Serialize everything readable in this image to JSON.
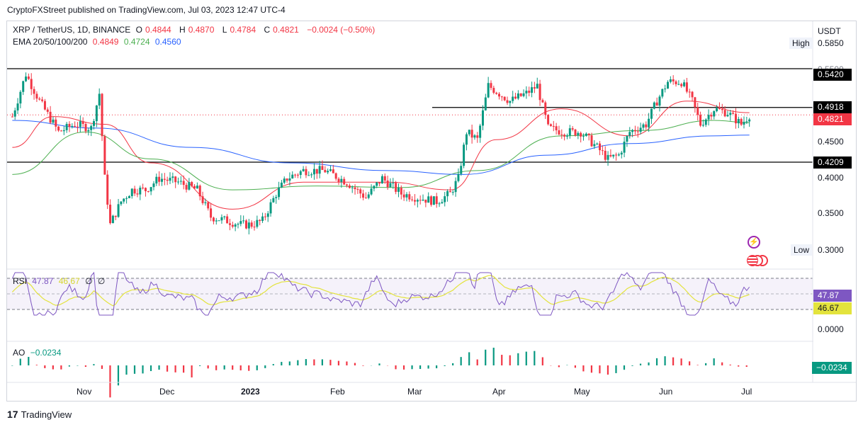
{
  "header": {
    "published": "CryptoFXStreet published on TradingView.com, Jul 03, 2023 12:47 UTC-4"
  },
  "legend": {
    "symbol": "XRP / TetherUS, 1D, BINANCE",
    "o_label": "O",
    "o": "0.4844",
    "h_label": "H",
    "h": "0.4870",
    "l_label": "L",
    "l": "0.4784",
    "c_label": "C",
    "c": "0.4821",
    "change": "−0.0024 (−0.50%)",
    "ema_label": "EMA 20/50/100/200",
    "ema20": "0.4849",
    "ema50": "0.4724",
    "ema100": "0.4560"
  },
  "rsi_legend": {
    "label": "RSI",
    "v1": "47.87",
    "v2": "46.67",
    "v3": "∅",
    "v4": "∅"
  },
  "ao_legend": {
    "label": "AO",
    "v": "−0.0234"
  },
  "price_axis": {
    "currency": "USDT",
    "high_label": "High",
    "high_value": "0.5850",
    "low_label": "Low",
    "low_value": "0.3000",
    "ticks": [
      "0.5500",
      "0.4500",
      "0.4000",
      "0.3500"
    ],
    "markers": [
      "0.5420",
      "0.4918",
      "0.4821",
      "0.4209"
    ],
    "rsi_markers": [
      "47.87",
      "46.67"
    ],
    "rsi_zero": "0.0000",
    "ao_marker": "−0.0234"
  },
  "time_axis": [
    "Nov",
    "Dec",
    "2023",
    "Feb",
    "Mar",
    "Apr",
    "May",
    "Jun",
    "Jul"
  ],
  "footer": {
    "brand": "TradingView"
  },
  "colors": {
    "up": "#089981",
    "down": "#f23645",
    "ema20": "#f23645",
    "ema50": "#4caf50",
    "ema100": "#2962ff",
    "rsi": "#7e57c2",
    "rsi_ma": "#e3e33d"
  },
  "chart_data": {
    "type": "candlestick",
    "title": "XRP / TetherUS, 1D, BINANCE",
    "ylim": [
      0.28,
      0.6
    ],
    "support_resistance": [
      0.542,
      0.4918,
      0.4209
    ],
    "last_price": 0.4821,
    "anchors": [
      [
        "Oct 05",
        0.48
      ],
      [
        "Oct 10",
        0.535
      ],
      [
        "Oct 15",
        0.5
      ],
      [
        "Oct 22",
        0.46
      ],
      [
        "Oct 28",
        0.47
      ],
      [
        "Nov 03",
        0.465
      ],
      [
        "Nov 06",
        0.51
      ],
      [
        "Nov 08",
        0.4
      ],
      [
        "Nov 10",
        0.34
      ],
      [
        "Nov 14",
        0.37
      ],
      [
        "Nov 18",
        0.385
      ],
      [
        "Nov 23",
        0.385
      ],
      [
        "Nov 28",
        0.4
      ],
      [
        "Dec 05",
        0.395
      ],
      [
        "Dec 12",
        0.385
      ],
      [
        "Dec 17",
        0.35
      ],
      [
        "Dec 23",
        0.345
      ],
      [
        "Dec 28",
        0.34
      ],
      [
        "Jan 01",
        0.34
      ],
      [
        "Jan 05",
        0.345
      ],
      [
        "Jan 10",
        0.38
      ],
      [
        "Jan 14",
        0.4
      ],
      [
        "Jan 20",
        0.41
      ],
      [
        "Jan 28",
        0.41
      ],
      [
        "Feb 05",
        0.395
      ],
      [
        "Feb 12",
        0.375
      ],
      [
        "Feb 18",
        0.4
      ],
      [
        "Feb 25",
        0.38
      ],
      [
        "Mar 03",
        0.375
      ],
      [
        "Mar 10",
        0.37
      ],
      [
        "Mar 15",
        0.38
      ],
      [
        "Mar 18",
        0.4
      ],
      [
        "Mar 21",
        0.46
      ],
      [
        "Mar 25",
        0.45
      ],
      [
        "Mar 29",
        0.52
      ],
      [
        "Apr 02",
        0.51
      ],
      [
        "Apr 06",
        0.5
      ],
      [
        "Apr 12",
        0.51
      ],
      [
        "Apr 16",
        0.52
      ],
      [
        "Apr 20",
        0.465
      ],
      [
        "Apr 26",
        0.46
      ],
      [
        "May 02",
        0.46
      ],
      [
        "May 08",
        0.44
      ],
      [
        "May 12",
        0.425
      ],
      [
        "May 16",
        0.43
      ],
      [
        "May 20",
        0.46
      ],
      [
        "May 26",
        0.47
      ],
      [
        "May 30",
        0.5
      ],
      [
        "Jun 03",
        0.525
      ],
      [
        "Jun 08",
        0.525
      ],
      [
        "Jun 12",
        0.5
      ],
      [
        "Jun 15",
        0.47
      ],
      [
        "Jun 20",
        0.49
      ],
      [
        "Jun 25",
        0.485
      ],
      [
        "Jun 30",
        0.47
      ],
      [
        "Jul 03",
        0.482
      ]
    ],
    "ema_lines": [
      {
        "name": "EMA 20",
        "points": [
          [
            "Oct 05",
            0.44
          ],
          [
            "Oct 20",
            0.48
          ],
          [
            "Nov 08",
            0.47
          ],
          [
            "Nov 25",
            0.42
          ],
          [
            "Dec 25",
            0.36
          ],
          [
            "Jan 20",
            0.395
          ],
          [
            "Feb 20",
            0.395
          ],
          [
            "Mar 15",
            0.385
          ],
          [
            "Apr 01",
            0.45
          ],
          [
            "Apr 25",
            0.49
          ],
          [
            "May 20",
            0.455
          ],
          [
            "Jun 10",
            0.5
          ],
          [
            "Jul 03",
            0.485
          ]
        ]
      },
      {
        "name": "EMA 50",
        "points": [
          [
            "Oct 05",
            0.405
          ],
          [
            "Nov 01",
            0.46
          ],
          [
            "Nov 25",
            0.425
          ],
          [
            "Dec 25",
            0.385
          ],
          [
            "Jan 25",
            0.39
          ],
          [
            "Feb 25",
            0.388
          ],
          [
            "Mar 25",
            0.41
          ],
          [
            "Apr 25",
            0.455
          ],
          [
            "May 25",
            0.462
          ],
          [
            "Jun 20",
            0.475
          ],
          [
            "Jul 03",
            0.472
          ]
        ]
      },
      {
        "name": "EMA 100",
        "points": [
          [
            "Oct 05",
            0.475
          ],
          [
            "Nov 05",
            0.465
          ],
          [
            "Dec 10",
            0.44
          ],
          [
            "Jan 15",
            0.42
          ],
          [
            "Feb 20",
            0.41
          ],
          [
            "Mar 20",
            0.405
          ],
          [
            "Apr 20",
            0.43
          ],
          [
            "May 20",
            0.445
          ],
          [
            "Jun 20",
            0.455
          ],
          [
            "Jul 03",
            0.456
          ]
        ]
      }
    ],
    "rsi_value": 47.87,
    "rsi_ma": 46.67,
    "ao_value": -0.0234
  }
}
